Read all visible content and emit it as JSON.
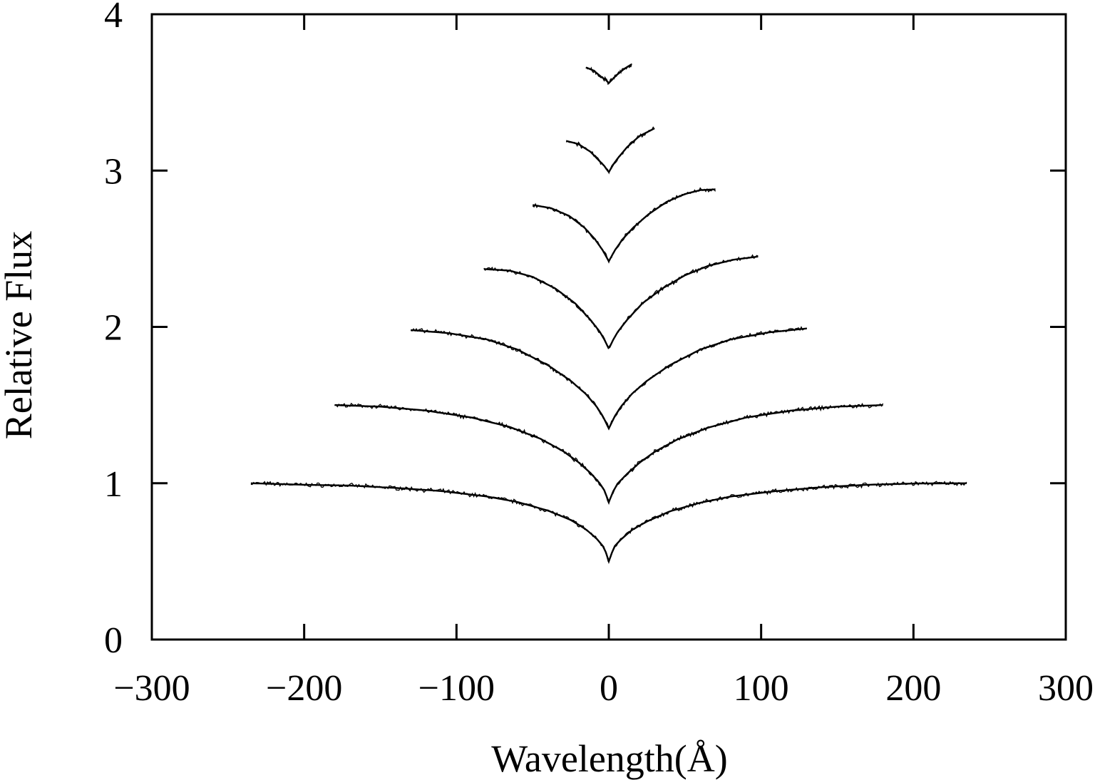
{
  "chart_data": {
    "type": "line",
    "xlabel": "Wavelength(Å)",
    "ylabel": "Relative Flux",
    "xlim": [
      -300,
      300
    ],
    "ylim": [
      0,
      4
    ],
    "x_ticks": [
      -300,
      -200,
      -100,
      0,
      100,
      200,
      300
    ],
    "x_tick_labels": [
      "−300",
      "−200",
      "−100",
      "0",
      "100",
      "200",
      "300"
    ],
    "y_ticks": [
      0,
      1,
      2,
      3,
      4
    ],
    "y_tick_labels": [
      "0",
      "1",
      "2",
      "3",
      "4"
    ],
    "grid": false,
    "legend": "none",
    "line_color": "#000000",
    "series": [
      {
        "x": [
          -235,
          -200,
          -170,
          -140,
          -110,
          -80,
          -60,
          -40,
          -25,
          -15,
          -8,
          -4,
          -2,
          0,
          2,
          4,
          8,
          15,
          25,
          40,
          60,
          80,
          110,
          140,
          170,
          200,
          235
        ],
        "y": [
          1.0,
          0.99,
          0.985,
          0.97,
          0.95,
          0.915,
          0.88,
          0.825,
          0.765,
          0.705,
          0.645,
          0.6,
          0.56,
          0.5,
          0.555,
          0.6,
          0.64,
          0.7,
          0.755,
          0.82,
          0.875,
          0.915,
          0.95,
          0.975,
          0.99,
          0.998,
          1.0
        ]
      },
      {
        "x": [
          -180,
          -150,
          -120,
          -90,
          -65,
          -45,
          -30,
          -20,
          -12,
          -6,
          -3,
          0,
          3,
          6,
          12,
          20,
          30,
          45,
          65,
          90,
          120,
          150,
          180
        ],
        "y": [
          1.5,
          1.49,
          1.465,
          1.42,
          1.36,
          1.285,
          1.205,
          1.135,
          1.065,
          1.0,
          0.955,
          0.88,
          0.95,
          1.0,
          1.06,
          1.13,
          1.2,
          1.28,
          1.355,
          1.42,
          1.465,
          1.49,
          1.5
        ]
      },
      {
        "x": [
          -130,
          -105,
          -80,
          -60,
          -40,
          -25,
          -15,
          -8,
          -4,
          0,
          4,
          8,
          15,
          25,
          40,
          60,
          80,
          105,
          130
        ],
        "y": [
          1.98,
          1.96,
          1.92,
          1.855,
          1.755,
          1.655,
          1.57,
          1.49,
          1.43,
          1.35,
          1.43,
          1.49,
          1.57,
          1.655,
          1.755,
          1.855,
          1.92,
          1.965,
          1.99
        ]
      },
      {
        "x": [
          -82,
          -65,
          -50,
          -35,
          -22,
          -12,
          -6,
          -3,
          0,
          3,
          6,
          12,
          22,
          35,
          50,
          65,
          82,
          98
        ],
        "y": [
          2.37,
          2.36,
          2.32,
          2.245,
          2.15,
          2.045,
          1.97,
          1.92,
          1.86,
          1.92,
          1.97,
          2.045,
          2.15,
          2.245,
          2.33,
          2.39,
          2.43,
          2.45
        ]
      },
      {
        "x": [
          -50,
          -38,
          -26,
          -16,
          -9,
          -4,
          0,
          4,
          9,
          16,
          26,
          38,
          50,
          60,
          70
        ],
        "y": [
          2.78,
          2.76,
          2.71,
          2.635,
          2.56,
          2.49,
          2.42,
          2.49,
          2.56,
          2.635,
          2.72,
          2.8,
          2.85,
          2.875,
          2.88
        ]
      },
      {
        "x": [
          -28,
          -20,
          -12,
          -6,
          -3,
          0,
          3,
          6,
          12,
          20,
          30
        ],
        "y": [
          3.19,
          3.17,
          3.12,
          3.06,
          3.03,
          2.99,
          3.04,
          3.08,
          3.15,
          3.22,
          3.27
        ]
      },
      {
        "x": [
          -15,
          -10,
          -5,
          -2,
          0,
          2,
          5,
          10,
          15
        ],
        "y": [
          3.66,
          3.64,
          3.6,
          3.58,
          3.56,
          3.58,
          3.61,
          3.65,
          3.68
        ]
      }
    ]
  }
}
